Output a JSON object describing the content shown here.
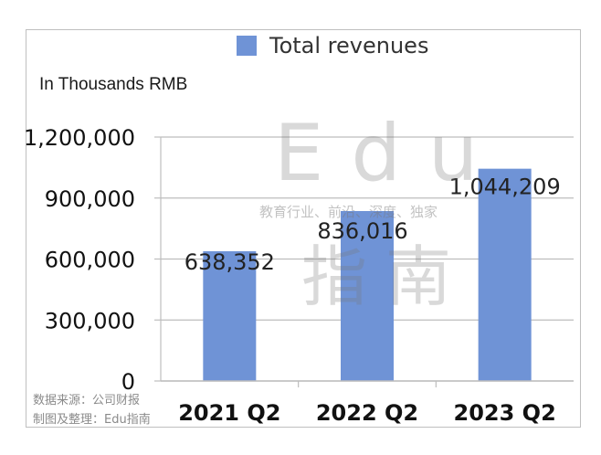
{
  "chart_data": {
    "type": "bar",
    "categories": [
      "2021 Q2",
      "2022 Q2",
      "2023 Q2"
    ],
    "series": [
      {
        "name": "Total revenues",
        "values": [
          638352,
          836016,
          1044209
        ],
        "color": "#6f93d6"
      }
    ],
    "data_labels": [
      "638,352",
      "836,016",
      "1,044,209"
    ],
    "ylabel": "In Thousands RMB",
    "ylim": [
      0,
      1200000
    ],
    "yticks": [
      0,
      300000,
      600000,
      900000,
      1200000
    ],
    "ytick_labels": [
      "0",
      "300,000",
      "600,000",
      "900,000",
      "1,200,000"
    ],
    "grid": true,
    "legend_position": "top"
  },
  "legend_label": "Total revenues",
  "unit_label": "In Thousands RMB",
  "source_lines": [
    "数据来源：公司财报",
    "制图及整理：Edu指南"
  ],
  "watermark": {
    "latin": "Edu",
    "cn": "指南",
    "tagline": "教育行业、前沿、深度、独家"
  }
}
